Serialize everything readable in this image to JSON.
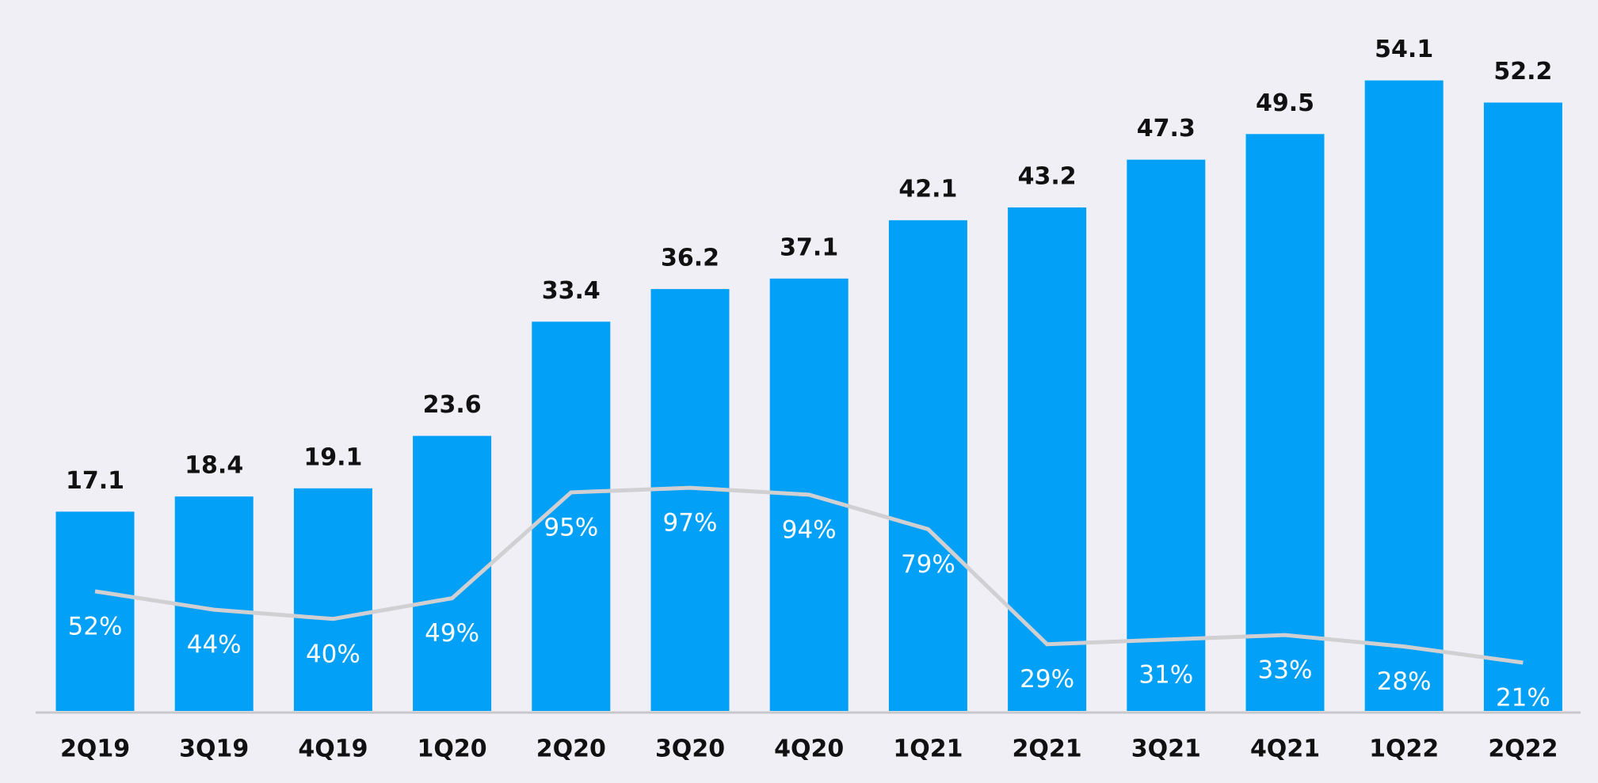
{
  "chart_data": {
    "type": "bar-line",
    "categories": [
      "2Q19",
      "3Q19",
      "4Q19",
      "1Q20",
      "2Q20",
      "3Q20",
      "4Q20",
      "1Q21",
      "2Q21",
      "3Q21",
      "4Q21",
      "1Q22",
      "2Q22"
    ],
    "series": [
      {
        "type": "bar",
        "color": "#03a0f7",
        "values": [
          17.1,
          18.4,
          19.1,
          23.6,
          33.4,
          36.2,
          37.1,
          42.1,
          43.2,
          47.3,
          49.5,
          54.1,
          52.2
        ]
      },
      {
        "type": "line",
        "axis": "y2",
        "color": "#d0d0d2",
        "values": [
          52,
          44,
          40,
          49,
          95,
          97,
          94,
          79,
          29,
          31,
          33,
          28,
          21
        ],
        "value_labels": [
          "52%",
          "44%",
          "40%",
          "49%",
          "95%",
          "97%",
          "94%",
          "79%",
          "29%",
          "31%",
          "33%",
          "28%",
          "21%"
        ]
      }
    ],
    "ylim": [
      0,
      61
    ],
    "y2lim": [
      0,
      309
    ]
  }
}
